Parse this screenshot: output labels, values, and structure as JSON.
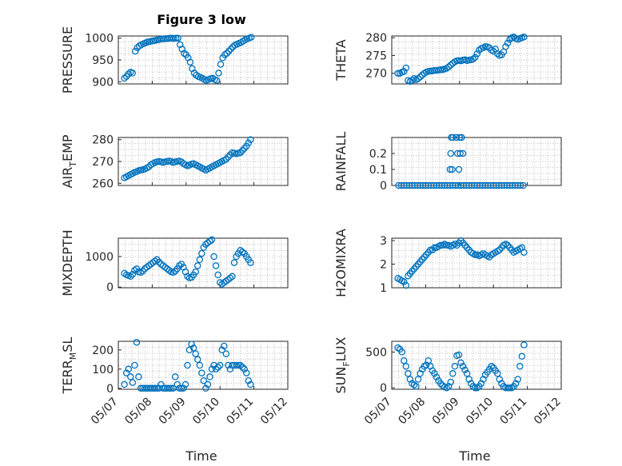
{
  "figure": {
    "title": "Figure 3 low",
    "xlabel": "Time"
  },
  "colors": {
    "series": "#0072BD",
    "axis": "#262626"
  },
  "chart_data": [
    {
      "type": "scatter",
      "id": "pressure",
      "ylabel": "PRESSURE",
      "ylim": [
        895,
        1005
      ],
      "yticks": [
        900,
        950,
        1000
      ],
      "xlim": [
        0,
        5
      ],
      "xticks": [
        "05/07",
        "05/08",
        "05/09",
        "05/10",
        "05/11",
        "05/12"
      ],
      "show_xticks": false,
      "x": [
        0.18,
        0.24,
        0.3,
        0.36,
        0.42,
        0.5,
        0.56,
        0.62,
        0.68,
        0.74,
        0.8,
        0.86,
        0.92,
        0.98,
        1.04,
        1.1,
        1.16,
        1.22,
        1.28,
        1.34,
        1.4,
        1.46,
        1.52,
        1.58,
        1.64,
        1.7,
        1.76,
        1.82,
        1.88,
        1.94,
        2.0,
        2.06,
        2.12,
        2.18,
        2.24,
        2.3,
        2.36,
        2.42,
        2.48,
        2.54,
        2.6,
        2.66,
        2.72,
        2.78,
        2.84,
        2.9,
        2.96,
        3.02,
        3.08,
        3.14,
        3.2,
        3.26,
        3.32,
        3.38,
        3.44,
        3.5,
        3.56,
        3.62,
        3.68,
        3.74,
        3.8,
        3.86,
        3.92
      ],
      "y": [
        908,
        912,
        918,
        922,
        920,
        970,
        978,
        982,
        985,
        987,
        989,
        991,
        992,
        993,
        994,
        995,
        996,
        997,
        998,
        998,
        999,
        999,
        1000,
        1000,
        999,
        1000,
        1000,
        985,
        975,
        965,
        962,
        955,
        945,
        930,
        920,
        915,
        912,
        910,
        908,
        905,
        903,
        905,
        907,
        908,
        905,
        903,
        920,
        940,
        955,
        962,
        965,
        970,
        975,
        980,
        984,
        986,
        988,
        990,
        993,
        996,
        998,
        1000,
        1002
      ],
      "grid": true
    },
    {
      "type": "scatter",
      "id": "theta",
      "ylabel": "THETA",
      "ylim": [
        267,
        280.5
      ],
      "yticks": [
        270,
        275,
        280
      ],
      "xlim": [
        0,
        5
      ],
      "xticks": [
        "05/07",
        "05/08",
        "05/09",
        "05/10",
        "05/11",
        "05/12"
      ],
      "show_xticks": false,
      "x": [
        0.18,
        0.24,
        0.3,
        0.36,
        0.42,
        0.48,
        0.54,
        0.6,
        0.66,
        0.72,
        0.78,
        0.84,
        0.9,
        0.96,
        1.02,
        1.08,
        1.14,
        1.2,
        1.26,
        1.32,
        1.38,
        1.44,
        1.5,
        1.56,
        1.62,
        1.68,
        1.74,
        1.8,
        1.86,
        1.92,
        1.98,
        2.04,
        2.1,
        2.16,
        2.22,
        2.28,
        2.34,
        2.4,
        2.46,
        2.52,
        2.58,
        2.64,
        2.7,
        2.76,
        2.82,
        2.88,
        2.94,
        3.0,
        3.06,
        3.12,
        3.18,
        3.24,
        3.3,
        3.36,
        3.42,
        3.48,
        3.54,
        3.6,
        3.66,
        3.72,
        3.78,
        3.84,
        3.9
      ],
      "y": [
        270,
        270,
        270.3,
        270.5,
        271.5,
        268,
        267.7,
        268,
        268.5,
        268.2,
        268.5,
        269,
        269.5,
        270,
        270.3,
        270.5,
        270.6,
        270.7,
        270.8,
        270.8,
        270.9,
        271,
        271,
        271.2,
        271.4,
        271.8,
        272.3,
        272.8,
        273.2,
        273.5,
        273.6,
        273.5,
        273.7,
        273.8,
        273.6,
        273.7,
        273.8,
        274,
        274.5,
        275.5,
        276.5,
        277,
        277.2,
        277.5,
        277.4,
        277.2,
        276.5,
        276.2,
        276.8,
        275.5,
        275,
        275.2,
        276,
        277.5,
        278.5,
        279.5,
        280,
        280.2,
        279.8,
        279.5,
        279.8,
        280,
        280.2
      ],
      "grid": true
    },
    {
      "type": "scatter",
      "id": "air-temp",
      "ylabel": "AIR_TEMP",
      "ylabel_main": "AIR",
      "ylabel_sub": "T",
      "ylabel_rest": "EMP",
      "ylim": [
        259,
        281
      ],
      "yticks": [
        260,
        270,
        280
      ],
      "xlim": [
        0,
        5
      ],
      "xticks": [
        "05/07",
        "05/08",
        "05/09",
        "05/10",
        "05/11",
        "05/12"
      ],
      "show_xticks": false,
      "x": [
        0.18,
        0.24,
        0.3,
        0.36,
        0.42,
        0.48,
        0.54,
        0.6,
        0.66,
        0.72,
        0.78,
        0.84,
        0.9,
        0.96,
        1.02,
        1.08,
        1.14,
        1.2,
        1.26,
        1.32,
        1.38,
        1.44,
        1.5,
        1.56,
        1.62,
        1.68,
        1.74,
        1.8,
        1.86,
        1.92,
        1.98,
        2.04,
        2.1,
        2.16,
        2.22,
        2.28,
        2.34,
        2.4,
        2.46,
        2.52,
        2.58,
        2.64,
        2.7,
        2.76,
        2.82,
        2.88,
        2.94,
        3.0,
        3.06,
        3.12,
        3.18,
        3.24,
        3.3,
        3.36,
        3.42,
        3.48,
        3.54,
        3.6,
        3.66,
        3.72,
        3.78,
        3.84,
        3.9
      ],
      "y": [
        262.5,
        263,
        263.5,
        264,
        264.5,
        265,
        265.3,
        265.8,
        266,
        266.2,
        266.5,
        267,
        267.5,
        268.5,
        269,
        269.5,
        269.8,
        270,
        269.8,
        269.5,
        269.8,
        270,
        270.2,
        270,
        269.5,
        269.8,
        270,
        270.2,
        269.8,
        269,
        268.5,
        268,
        268.3,
        268.8,
        269,
        268.5,
        268,
        267.5,
        267,
        266.5,
        266,
        266.5,
        267,
        267.5,
        268,
        268.5,
        269,
        269.5,
        270,
        270.5,
        271,
        272,
        273,
        274,
        273.8,
        273.5,
        273.8,
        274,
        275,
        276,
        277,
        278.5,
        280
      ],
      "grid": true
    },
    {
      "type": "scatter",
      "id": "rainfall",
      "ylabel": "RAINFALL",
      "ylim": [
        0,
        0.3
      ],
      "yticks": [
        0,
        0.1,
        0.2
      ],
      "xlim": [
        0,
        5
      ],
      "xticks": [
        "05/07",
        "05/08",
        "05/09",
        "05/10",
        "05/11",
        "05/12"
      ],
      "show_xticks": false,
      "x": [
        0.2,
        0.28,
        0.36,
        0.44,
        0.52,
        0.6,
        0.68,
        0.76,
        0.84,
        0.92,
        1.0,
        1.08,
        1.16,
        1.24,
        1.32,
        1.4,
        1.48,
        1.56,
        1.64,
        1.72,
        1.8,
        1.88,
        1.96,
        2.04,
        2.12,
        2.2,
        2.28,
        2.36,
        2.44,
        2.52,
        2.6,
        2.68,
        2.76,
        2.84,
        2.92,
        3.0,
        3.08,
        3.16,
        3.24,
        3.32,
        3.4,
        3.48,
        3.56,
        3.64,
        3.72,
        3.8,
        3.88,
        1.72,
        1.76,
        1.8,
        1.74,
        1.78,
        1.9,
        1.94,
        1.98,
        2.0,
        2.06,
        2.1,
        2.02,
        2.06
      ],
      "y": [
        0,
        0,
        0,
        0,
        0,
        0,
        0,
        0,
        0,
        0,
        0,
        0,
        0,
        0,
        0,
        0,
        0,
        0,
        0,
        0,
        0,
        0,
        0,
        0,
        0,
        0,
        0,
        0,
        0,
        0,
        0,
        0,
        0,
        0,
        0,
        0,
        0,
        0,
        0,
        0,
        0,
        0,
        0,
        0,
        0,
        0,
        0,
        0.1,
        0.3,
        0.3,
        0.2,
        0.1,
        0.3,
        0.2,
        0.1,
        0.3,
        0.3,
        0.2,
        0.2,
        0.3
      ],
      "grid": true
    },
    {
      "type": "scatter",
      "id": "mixdepth",
      "ylabel": "MIXDEPTH",
      "ylim": [
        -20,
        1600
      ],
      "yticks": [
        0,
        1000
      ],
      "xlim": [
        0,
        5
      ],
      "xticks": [
        "05/07",
        "05/08",
        "05/09",
        "05/10",
        "05/11",
        "05/12"
      ],
      "show_xticks": false,
      "x": [
        0.18,
        0.24,
        0.3,
        0.36,
        0.42,
        0.48,
        0.54,
        0.6,
        0.66,
        0.72,
        0.78,
        0.84,
        0.9,
        0.96,
        1.02,
        1.08,
        1.14,
        1.2,
        1.26,
        1.32,
        1.38,
        1.44,
        1.5,
        1.56,
        1.62,
        1.68,
        1.74,
        1.8,
        1.86,
        1.92,
        1.98,
        2.04,
        2.1,
        2.16,
        2.22,
        2.28,
        2.34,
        2.4,
        2.46,
        2.52,
        2.58,
        2.64,
        2.7,
        2.76,
        2.82,
        2.88,
        2.94,
        3.0,
        3.06,
        3.12,
        3.18,
        3.24,
        3.3,
        3.36,
        3.42,
        3.48,
        3.54,
        3.6,
        3.66,
        3.72,
        3.78,
        3.84,
        3.9
      ],
      "y": [
        450,
        400,
        380,
        350,
        420,
        550,
        600,
        500,
        480,
        520,
        600,
        650,
        700,
        750,
        800,
        850,
        900,
        820,
        750,
        700,
        650,
        600,
        550,
        500,
        480,
        520,
        600,
        700,
        750,
        650,
        500,
        350,
        300,
        320,
        400,
        500,
        700,
        900,
        1100,
        1300,
        1400,
        1450,
        1500,
        1550,
        1000,
        700,
        400,
        150,
        100,
        150,
        200,
        250,
        300,
        350,
        800,
        1000,
        1100,
        1200,
        1150,
        1100,
        1000,
        900,
        800
      ],
      "grid": true
    },
    {
      "type": "scatter",
      "id": "h2omixra",
      "ylabel": "H2OMIXRA",
      "ylim": [
        1,
        3.1
      ],
      "yticks": [
        1,
        2,
        3
      ],
      "xlim": [
        0,
        5
      ],
      "xticks": [
        "05/07",
        "05/08",
        "05/09",
        "05/10",
        "05/11",
        "05/12"
      ],
      "show_xticks": false,
      "x": [
        0.18,
        0.24,
        0.3,
        0.36,
        0.42,
        0.48,
        0.54,
        0.6,
        0.66,
        0.72,
        0.78,
        0.84,
        0.9,
        0.96,
        1.02,
        1.08,
        1.14,
        1.2,
        1.26,
        1.32,
        1.38,
        1.44,
        1.5,
        1.56,
        1.62,
        1.68,
        1.74,
        1.8,
        1.86,
        1.92,
        1.98,
        2.04,
        2.1,
        2.16,
        2.22,
        2.28,
        2.34,
        2.4,
        2.46,
        2.52,
        2.58,
        2.64,
        2.7,
        2.76,
        2.82,
        2.88,
        2.94,
        3.0,
        3.06,
        3.12,
        3.18,
        3.24,
        3.3,
        3.36,
        3.42,
        3.48,
        3.54,
        3.6,
        3.66,
        3.72,
        3.78,
        3.84,
        3.9
      ],
      "y": [
        1.4,
        1.35,
        1.3,
        1.25,
        1.1,
        1.5,
        1.6,
        1.7,
        1.8,
        1.9,
        2.0,
        2.1,
        2.2,
        2.3,
        2.4,
        2.5,
        2.6,
        2.6,
        2.7,
        2.7,
        2.75,
        2.8,
        2.8,
        2.85,
        2.8,
        2.8,
        2.75,
        2.8,
        2.85,
        2.8,
        2.9,
        3.0,
        2.9,
        2.8,
        2.7,
        2.6,
        2.5,
        2.45,
        2.4,
        2.4,
        2.35,
        2.4,
        2.45,
        2.4,
        2.35,
        2.3,
        2.4,
        2.45,
        2.5,
        2.55,
        2.6,
        2.7,
        2.8,
        2.85,
        2.8,
        2.7,
        2.6,
        2.5,
        2.55,
        2.6,
        2.65,
        2.7,
        2.5
      ],
      "grid": true
    },
    {
      "type": "scatter",
      "id": "terr-msl",
      "ylabel": "TERR_MSL",
      "ylabel_main": "TERR",
      "ylabel_sub": "M",
      "ylabel_rest": "SL",
      "ylim": [
        -5,
        245
      ],
      "yticks": [
        0,
        100,
        200
      ],
      "xlim": [
        0,
        5
      ],
      "xticks": [
        "05/07",
        "05/08",
        "05/09",
        "05/10",
        "05/11",
        "05/12"
      ],
      "show_xticks": true,
      "x": [
        0.18,
        0.24,
        0.3,
        0.36,
        0.42,
        0.48,
        0.54,
        0.6,
        0.66,
        0.72,
        0.78,
        0.84,
        0.9,
        0.96,
        1.02,
        1.08,
        1.14,
        1.2,
        1.26,
        1.32,
        1.38,
        1.44,
        1.5,
        1.56,
        1.62,
        1.68,
        1.74,
        1.8,
        1.86,
        1.92,
        1.98,
        2.04,
        2.1,
        2.16,
        2.22,
        2.28,
        2.34,
        2.4,
        2.46,
        2.52,
        2.58,
        2.64,
        2.7,
        2.76,
        2.82,
        2.88,
        2.94,
        3.0,
        3.06,
        3.12,
        3.18,
        3.24,
        3.3,
        3.36,
        3.42,
        3.48,
        3.54,
        3.6,
        3.66,
        3.72,
        3.78,
        3.84,
        3.9
      ],
      "y": [
        20,
        80,
        100,
        60,
        30,
        120,
        240,
        60,
        0,
        0,
        0,
        0,
        0,
        0,
        0,
        0,
        0,
        0,
        20,
        0,
        0,
        0,
        0,
        0,
        0,
        60,
        20,
        0,
        0,
        0,
        20,
        120,
        200,
        230,
        210,
        180,
        150,
        120,
        80,
        40,
        0,
        20,
        60,
        100,
        120,
        100,
        110,
        120,
        200,
        220,
        180,
        120,
        100,
        120,
        120,
        120,
        120,
        120,
        110,
        100,
        80,
        40,
        20
      ],
      "grid": true
    },
    {
      "type": "scatter",
      "id": "sun-flux",
      "ylabel": "SUN_FLUX",
      "ylabel_main": "SUN",
      "ylabel_sub": "F",
      "ylabel_rest": "LUX",
      "ylim": [
        -20,
        650
      ],
      "yticks": [
        0,
        500
      ],
      "xlim": [
        0,
        5
      ],
      "xticks": [
        "05/07",
        "05/08",
        "05/09",
        "05/10",
        "05/11",
        "05/12"
      ],
      "show_xticks": true,
      "x": [
        0.18,
        0.24,
        0.3,
        0.36,
        0.42,
        0.48,
        0.54,
        0.6,
        0.66,
        0.72,
        0.78,
        0.84,
        0.9,
        0.96,
        1.02,
        1.08,
        1.14,
        1.2,
        1.26,
        1.32,
        1.38,
        1.44,
        1.5,
        1.56,
        1.62,
        1.68,
        1.74,
        1.8,
        1.86,
        1.92,
        1.98,
        2.04,
        2.1,
        2.16,
        2.22,
        2.28,
        2.34,
        2.4,
        2.46,
        2.52,
        2.58,
        2.64,
        2.7,
        2.76,
        2.82,
        2.88,
        2.94,
        3.0,
        3.06,
        3.12,
        3.18,
        3.24,
        3.3,
        3.36,
        3.42,
        3.48,
        3.54,
        3.6,
        3.66,
        3.72,
        3.78,
        3.84,
        3.9
      ],
      "y": [
        560,
        540,
        500,
        380,
        300,
        200,
        120,
        60,
        40,
        20,
        120,
        200,
        260,
        300,
        320,
        380,
        300,
        240,
        200,
        150,
        100,
        60,
        30,
        10,
        0,
        20,
        80,
        200,
        300,
        450,
        460,
        350,
        300,
        250,
        200,
        120,
        60,
        20,
        0,
        0,
        20,
        60,
        120,
        180,
        220,
        260,
        300,
        280,
        240,
        200,
        120,
        60,
        20,
        0,
        0,
        0,
        0,
        20,
        60,
        120,
        300,
        440,
        600
      ],
      "grid": true
    }
  ]
}
